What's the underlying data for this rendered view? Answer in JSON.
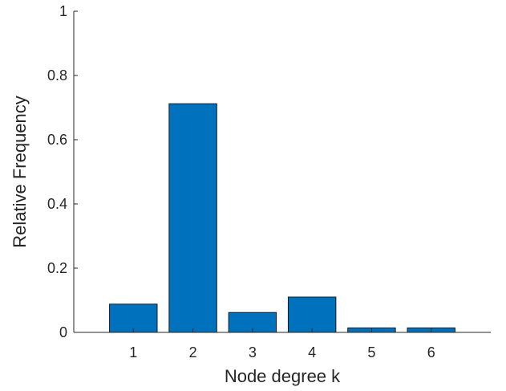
{
  "chart_data": {
    "type": "bar",
    "categories": [
      "1",
      "2",
      "3",
      "4",
      "5",
      "6"
    ],
    "values": [
      0.088,
      0.712,
      0.062,
      0.11,
      0.014,
      0.014
    ],
    "title": "",
    "xlabel": "Node degree k",
    "ylabel": "Relative Frequency",
    "xlim": [
      0,
      7
    ],
    "ylim": [
      0,
      1
    ],
    "yticks": [
      "0",
      "0.2",
      "0.4",
      "0.6",
      "0.8",
      "1"
    ],
    "ytick_values": [
      0,
      0.2,
      0.4,
      0.6,
      0.8,
      1
    ],
    "grid": false,
    "legend": "none",
    "bar_color": "#0072BD"
  }
}
